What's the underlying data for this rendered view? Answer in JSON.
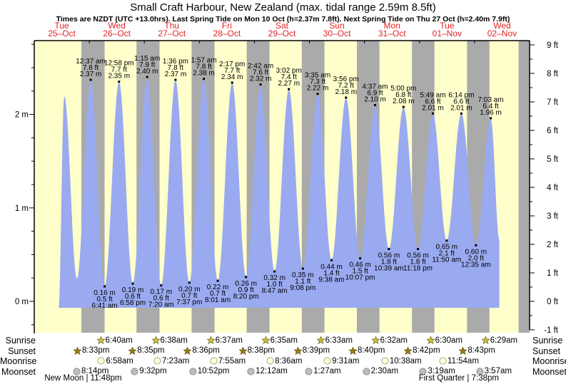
{
  "header": {
    "title": "Small Craft Harbour, New Zealand (max. tidal range 2.59m 8.5ft)",
    "subtitle": "Times are NZDT (UTC +13.0hrs). Last Spring Tide on Mon 10 Oct (h=2.37m 7.8ft). Next Spring Tide on Thu 27 Oct (h=2.40m 7.9ft)"
  },
  "chart_data": {
    "type": "area",
    "title": "Small Craft Harbour, New Zealand (max. tidal range 2.59m 8.5ft)",
    "days": [
      {
        "weekday": "Tue",
        "date": "25–Oct"
      },
      {
        "weekday": "Wed",
        "date": "26–Oct"
      },
      {
        "weekday": "Thu",
        "date": "27–Oct"
      },
      {
        "weekday": "Fri",
        "date": "28–Oct"
      },
      {
        "weekday": "Sat",
        "date": "29–Oct"
      },
      {
        "weekday": "Sun",
        "date": "30–Oct"
      },
      {
        "weekday": "Mon",
        "date": "31–Oct"
      },
      {
        "weekday": "Tue",
        "date": "01–Nov"
      },
      {
        "weekday": "Wed",
        "date": "02–Nov"
      }
    ],
    "y_axis_left": {
      "unit": "m",
      "labels": [
        "2 m",
        "1 m",
        "0 m"
      ],
      "label_values": [
        2,
        1,
        0
      ],
      "minor_step": 0.25,
      "range": [
        -0.3,
        2.8
      ]
    },
    "y_axis_right": {
      "unit": "ft",
      "labels": [
        "9 ft",
        "8 ft",
        "7 ft",
        "6 ft",
        "5 ft",
        "4 ft",
        "3 ft",
        "2 ft",
        "1 ft",
        "0 ft",
        "-1 ft"
      ],
      "label_values": [
        9,
        8,
        7,
        6,
        5,
        4,
        3,
        2,
        1,
        0,
        -1
      ],
      "minor_step": 0.5
    },
    "tides": [
      {
        "day": 1,
        "time": "12:37 am",
        "height_ft": 7.8,
        "height_m": 2.37,
        "type": "high"
      },
      {
        "day": 1,
        "time": "6:41 am",
        "height_ft": 0.5,
        "height_m": 0.16,
        "type": "low"
      },
      {
        "day": 1,
        "time": "12:58 pm",
        "height_ft": 7.7,
        "height_m": 2.35,
        "type": "high"
      },
      {
        "day": 1,
        "time": "6:58 pm",
        "height_ft": 0.6,
        "height_m": 0.19,
        "type": "low"
      },
      {
        "day": 2,
        "time": "1:15 am",
        "height_ft": 7.9,
        "height_m": 2.4,
        "type": "high"
      },
      {
        "day": 2,
        "time": "7:20 am",
        "height_ft": 0.6,
        "height_m": 0.17,
        "type": "low"
      },
      {
        "day": 2,
        "time": "1:36 pm",
        "height_ft": 7.8,
        "height_m": 2.37,
        "type": "high"
      },
      {
        "day": 2,
        "time": "7:37 pm",
        "height_ft": 0.7,
        "height_m": 0.2,
        "type": "low"
      },
      {
        "day": 3,
        "time": "1:57 am",
        "height_ft": 7.8,
        "height_m": 2.38,
        "type": "high"
      },
      {
        "day": 3,
        "time": "8:01 am",
        "height_ft": 0.7,
        "height_m": 0.22,
        "type": "low"
      },
      {
        "day": 3,
        "time": "2:17 pm",
        "height_ft": 7.7,
        "height_m": 2.34,
        "type": "high"
      },
      {
        "day": 3,
        "time": "8:20 pm",
        "height_ft": 0.9,
        "height_m": 0.26,
        "type": "low"
      },
      {
        "day": 4,
        "time": "2:42 am",
        "height_ft": 7.6,
        "height_m": 2.32,
        "type": "high"
      },
      {
        "day": 4,
        "time": "8:47 am",
        "height_ft": 1.0,
        "height_m": 0.32,
        "type": "low"
      },
      {
        "day": 4,
        "time": "3:02 pm",
        "height_ft": 7.4,
        "height_m": 2.27,
        "type": "high"
      },
      {
        "day": 4,
        "time": "9:08 pm",
        "height_ft": 1.1,
        "height_m": 0.35,
        "type": "low"
      },
      {
        "day": 5,
        "time": "3:35 am",
        "height_ft": 7.3,
        "height_m": 2.22,
        "type": "high"
      },
      {
        "day": 5,
        "time": "9:38 am",
        "height_ft": 1.4,
        "height_m": 0.44,
        "type": "low"
      },
      {
        "day": 5,
        "time": "3:56 pm",
        "height_ft": 7.2,
        "height_m": 2.18,
        "type": "high"
      },
      {
        "day": 5,
        "time": "10:07 pm",
        "height_ft": 1.5,
        "height_m": 0.46,
        "type": "low"
      },
      {
        "day": 6,
        "time": "4:37 am",
        "height_ft": 6.9,
        "height_m": 2.1,
        "type": "high"
      },
      {
        "day": 6,
        "time": "10:39 am",
        "height_ft": 1.8,
        "height_m": 0.56,
        "type": "low"
      },
      {
        "day": 6,
        "time": "5:00 pm",
        "height_ft": 6.8,
        "height_m": 2.08,
        "type": "high"
      },
      {
        "day": 6,
        "time": "11:18 pm",
        "height_ft": 1.8,
        "height_m": 0.56,
        "type": "low"
      },
      {
        "day": 7,
        "time": "5:49 am",
        "height_ft": 6.6,
        "height_m": 2.01,
        "type": "high"
      },
      {
        "day": 7,
        "time": "11:50 am",
        "height_ft": 2.1,
        "height_m": 0.65,
        "type": "low"
      },
      {
        "day": 7,
        "time": "6:14 pm",
        "height_ft": 6.6,
        "height_m": 2.01,
        "type": "high"
      },
      {
        "day": 8,
        "time": "12:35 am",
        "height_ft": 2.0,
        "height_m": 0.6,
        "type": "low"
      },
      {
        "day": 8,
        "time": "7:03 am",
        "height_ft": 6.4,
        "height_m": 1.96,
        "type": "high"
      }
    ],
    "unlabeled_curve": {
      "start": {
        "day_frac": 0.44,
        "m": -0.09
      },
      "first_high": {
        "day_frac": 0.545,
        "m": 2.2
      },
      "first_low": {
        "day_frac": 0.775,
        "m": 0.24
      },
      "end": {
        "day_frac": 8.45,
        "m": 0.66
      },
      "last_night_band_start_day_frac": 8.8
    }
  },
  "almanac": {
    "rows": [
      {
        "name": "sunrise",
        "label": "Sunrise",
        "icon": "sunrise-star-icon",
        "events": [
          {
            "day": 1,
            "time": "6:40am"
          },
          {
            "day": 2,
            "time": "6:38am"
          },
          {
            "day": 3,
            "time": "6:37am"
          },
          {
            "day": 4,
            "time": "6:35am"
          },
          {
            "day": 5,
            "time": "6:33am"
          },
          {
            "day": 6,
            "time": "6:32am"
          },
          {
            "day": 7,
            "time": "6:30am"
          },
          {
            "day": 8,
            "time": "6:29am"
          }
        ]
      },
      {
        "name": "sunset",
        "label": "Sunset",
        "icon": "sunset-star-icon",
        "events": [
          {
            "day": 0,
            "time": "8:33pm"
          },
          {
            "day": 1,
            "time": "8:35pm"
          },
          {
            "day": 2,
            "time": "8:36pm"
          },
          {
            "day": 3,
            "time": "8:38pm"
          },
          {
            "day": 4,
            "time": "8:39pm"
          },
          {
            "day": 5,
            "time": "8:40pm"
          },
          {
            "day": 6,
            "time": "8:42pm"
          },
          {
            "day": 7,
            "time": "8:43pm"
          }
        ]
      },
      {
        "name": "moonrise",
        "label": "Moonrise",
        "icon": "moonrise-circle-icon",
        "events": [
          {
            "day": 1,
            "time": "6:58am"
          },
          {
            "day": 2,
            "time": "7:23am"
          },
          {
            "day": 3,
            "time": "7:55am"
          },
          {
            "day": 4,
            "time": "8:36am"
          },
          {
            "day": 5,
            "time": "9:31am"
          },
          {
            "day": 6,
            "time": "10:38am"
          },
          {
            "day": 7,
            "time": "11:54am"
          }
        ]
      },
      {
        "name": "moonset",
        "label": "Moonset",
        "icon": "moonset-circle-icon",
        "events": [
          {
            "day": 0,
            "time": "8:14pm"
          },
          {
            "day": 1,
            "time": "9:32pm"
          },
          {
            "day": 2,
            "time": "10:52pm"
          },
          {
            "day": 4,
            "time": "12:12am"
          },
          {
            "day": 5,
            "time": "1:27am"
          },
          {
            "day": 6,
            "time": "2:30am"
          },
          {
            "day": 7,
            "time": "3:19am"
          },
          {
            "day": 8,
            "time": "3:57am"
          }
        ]
      }
    ],
    "phases": [
      {
        "label": "New Moon",
        "time": "11:48pm",
        "day": 0
      },
      {
        "label": "First Quarter",
        "time": "7:38pm",
        "day": 7
      }
    ]
  },
  "colors": {
    "day_band": "#ffffcc",
    "night_band": "#aaaaaa",
    "tide_fill": "#99aaf0",
    "axis": "#000000",
    "day_label_red": "#e32222",
    "sunrise_fill": "#d2c53a",
    "sunrise_stroke": "#6f6a1a",
    "sunset_fill": "#9d7d12",
    "sunset_stroke": "#64500a",
    "moonrise_fill": "#ffffd6",
    "moonrise_stroke": "#a9a98a",
    "moonset_fill": "#bdbdbd",
    "moonset_stroke": "#8f8f8f"
  }
}
